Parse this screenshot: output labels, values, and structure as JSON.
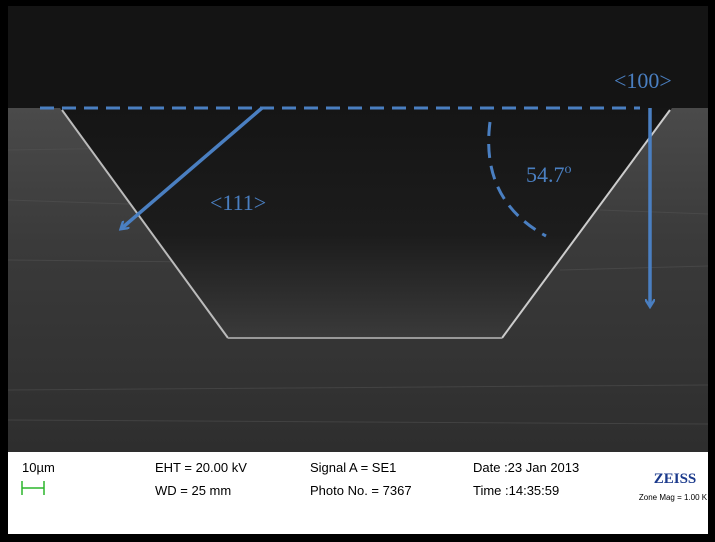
{
  "annotations": {
    "direction_top": "<100>",
    "direction_side": "<111>",
    "angle_value": "54.7",
    "angle_unit": "o"
  },
  "info_bar": {
    "scale": "10µm",
    "eht": "EHT = 20.00 kV",
    "wd": "WD =  25 mm",
    "signal": "Signal A = SE1",
    "photo": "Photo No. = 7367",
    "date": "Date :23 Jan 2013",
    "time": "Time :14:35:59",
    "logo": "ZEISS",
    "zone_mag": "Zone Mag =  1.00 K"
  }
}
